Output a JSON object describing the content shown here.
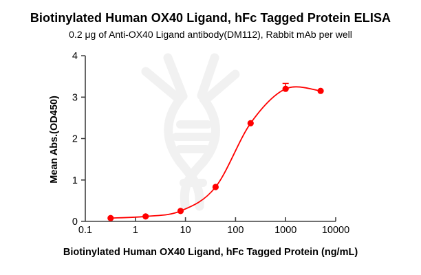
{
  "title": "Biotinylated Human OX40 Ligand, hFc Tagged Protein ELISA",
  "subtitle": "0.2 μg of Anti-OX40 Ligand antibody(DM112), Rabbit mAb per well",
  "chart_data": {
    "type": "scatter",
    "title": "Biotinylated Human OX40 Ligand, hFc Tagged Protein ELISA",
    "subtitle": "0.2 μg of Anti-OX40 Ligand antibody(DM112), Rabbit mAb per well",
    "xlabel": "Biotinylated Human OX40 Ligand, hFc Tagged Protein (ng/mL)",
    "ylabel": "Mean Abs.(OD450)",
    "x_scale": "log",
    "x": [
      0.32,
      1.6,
      8,
      40,
      200,
      1000,
      5000
    ],
    "y": [
      0.08,
      0.12,
      0.25,
      0.83,
      2.37,
      3.2,
      3.15
    ],
    "y_error_up": [
      0,
      0,
      0,
      0,
      0,
      0.13,
      0
    ],
    "curve": "4PL sigmoid fit through points",
    "xlim": [
      0.1,
      10000
    ],
    "ylim": [
      0,
      4
    ],
    "x_ticks": [
      0.1,
      1,
      10,
      100,
      1000,
      10000
    ],
    "x_tick_labels": [
      "0.1",
      "1",
      "10",
      "100",
      "1000",
      "10000"
    ],
    "y_ticks": [
      0,
      1,
      2,
      3,
      4
    ],
    "y_tick_labels": [
      "0",
      "1",
      "2",
      "3",
      "4"
    ],
    "grid": false,
    "legend": "none",
    "marker_color": "#FF0000",
    "line_color": "#FF0000",
    "axis_color": "#404040",
    "watermark_icon": "dna-helix-icon",
    "watermark_color": "#f1f1f1"
  }
}
